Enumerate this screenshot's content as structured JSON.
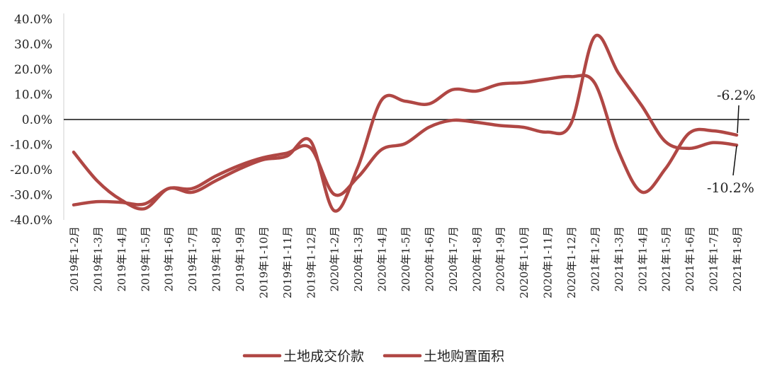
{
  "chart_data": {
    "type": "line",
    "title": "",
    "xlabel": "",
    "ylabel": "",
    "ylim": [
      -40,
      40
    ],
    "yticks": [
      "40.0%",
      "30.0%",
      "20.0%",
      "10.0%",
      "0.0%",
      "-10.0%",
      "-20.0%",
      "-30.0%",
      "-40.0%"
    ],
    "ytick_values": [
      40,
      30,
      20,
      10,
      0,
      -10,
      -20,
      -30,
      -40
    ],
    "grid": false,
    "legend": "bottom",
    "categories": [
      "2019年1-2月",
      "2019年1-3月",
      "2019年1-4月",
      "2019年1-5月",
      "2019年1-6月",
      "2019年1-7月",
      "2019年1-8月",
      "2019年1-9月",
      "2019年1-10月",
      "2019年1-11月",
      "2019年1-12月",
      "2020年1-2月",
      "2020年1-3月",
      "2020年1-4月",
      "2020年1-5月",
      "2020年1-6月",
      "2020年1-7月",
      "2020年1-8月",
      "2020年1-9月",
      "2020年1-10月",
      "2020年1-11月",
      "2020年1-12月",
      "2021年1-2月",
      "2021年1-3月",
      "2021年1-4月",
      "2021年1-5月",
      "2021年1-6月",
      "2021年1-7月",
      "2021年1-8月"
    ],
    "series": [
      {
        "name": "土地成交价款",
        "color": "#b04744",
        "values": [
          -13.0,
          -24.5,
          -32.0,
          -35.5,
          -27.5,
          -29.0,
          -24.4,
          -19.7,
          -16.0,
          -14.6,
          -8.5,
          -36.3,
          -19.0,
          7.7,
          7.3,
          6.2,
          11.9,
          11.3,
          14.1,
          14.7,
          16.1,
          17.1,
          14.6,
          -12.4,
          -28.9,
          -19.5,
          -5.4,
          -4.5,
          -6.2
        ]
      },
      {
        "name": "土地购置面积",
        "color": "#b04744",
        "values": [
          -34.0,
          -32.7,
          -33.0,
          -33.6,
          -27.5,
          -27.5,
          -22.5,
          -18.3,
          -15.2,
          -13.4,
          -11.3,
          -29.8,
          -23.0,
          -12.0,
          -9.6,
          -3.1,
          -0.3,
          -1.1,
          -2.4,
          -3.1,
          -5.0,
          -1.7,
          33.0,
          18.6,
          5.4,
          -8.9,
          -11.5,
          -9.2,
          -10.2
        ]
      }
    ],
    "annotations": [
      "-6.2%",
      "-10.2%"
    ]
  }
}
